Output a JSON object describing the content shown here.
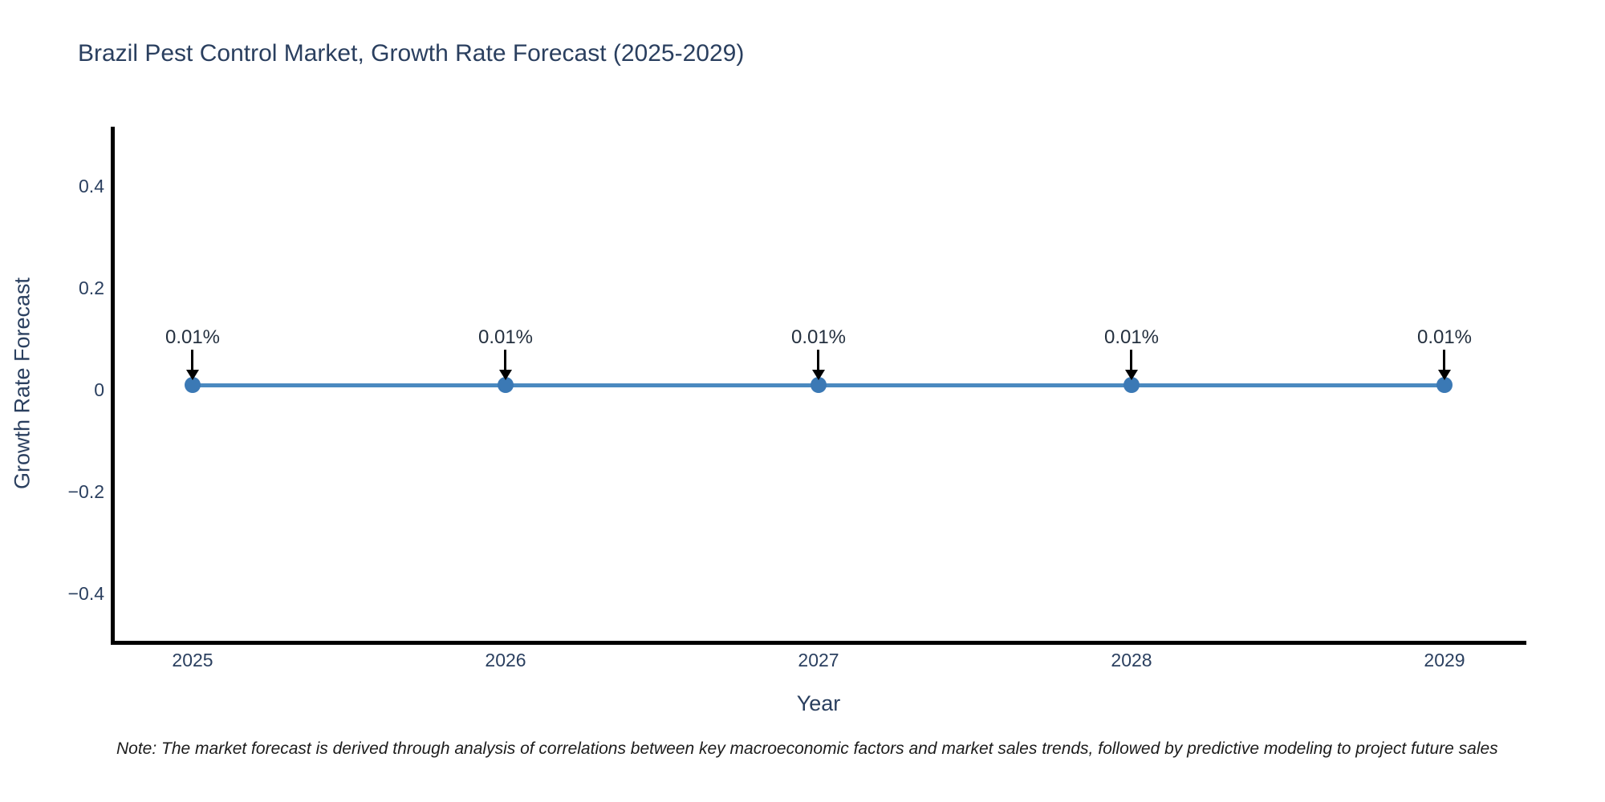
{
  "colors": {
    "background": "#ffffff",
    "text": "#2a3f5f",
    "annotation_text": "#24303f",
    "axis_line": "#000000",
    "series_line": "#4a89c0",
    "marker": "#3b79b5",
    "arrow": "#000000"
  },
  "chart": {
    "title": "Brazil Pest Control Market, Growth Rate Forecast (2025-2029)",
    "y_axis": {
      "label": "Growth Rate Forecast",
      "tick_labels": [
        "0.4",
        "0.2",
        "0",
        "−0.2",
        "−0.4"
      ]
    },
    "x_axis": {
      "label": "Year",
      "tick_labels": [
        "2025",
        "2026",
        "2027",
        "2028",
        "2029"
      ]
    }
  },
  "note": {
    "text": "Note: The market forecast is derived through analysis of correlations between key macroeconomic factors and market sales trends, followed by predictive modeling to project future sales"
  },
  "chart_data": {
    "type": "line",
    "title": "Brazil Pest Control Market, Growth Rate Forecast (2025-2029)",
    "xlabel": "Year",
    "ylabel": "Growth Rate Forecast",
    "x": [
      2025,
      2026,
      2027,
      2028,
      2029
    ],
    "y": [
      0.01,
      0.01,
      0.01,
      0.01,
      0.01
    ],
    "point_labels": [
      "0.01%",
      "0.01%",
      "0.01%",
      "0.01%",
      "0.01%"
    ],
    "yticks": [
      0.4,
      0.2,
      0,
      -0.2,
      -0.4
    ],
    "ylim": [
      -0.5,
      0.51
    ],
    "xlim_categories": [
      "2025",
      "2026",
      "2027",
      "2028",
      "2029"
    ],
    "grid": false,
    "legend": "none",
    "marker_style": "circle",
    "annotation_arrows": true
  }
}
